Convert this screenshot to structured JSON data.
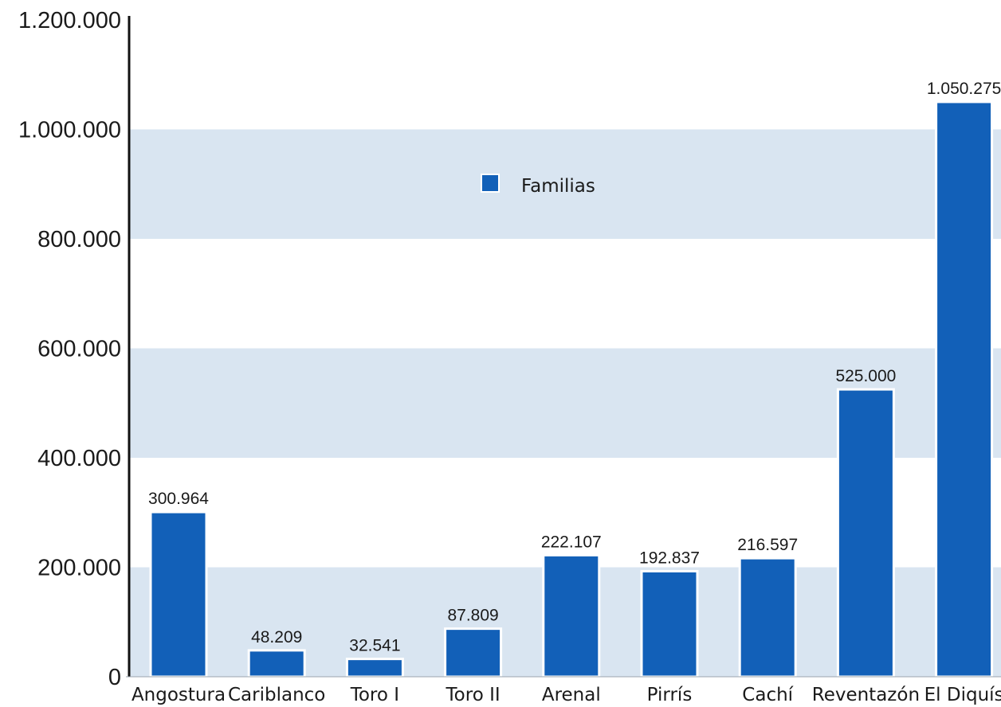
{
  "chart_data": {
    "type": "bar",
    "categories": [
      "Angostura",
      "Cariblanco",
      "Toro I",
      "Toro II",
      "Arenal",
      "Pirrís",
      "Cachí",
      "Reventazón",
      "El Diquís"
    ],
    "series": [
      {
        "name": "Familias",
        "values": [
          300964,
          48209,
          32541,
          87809,
          222107,
          192837,
          216597,
          525000,
          1050275
        ],
        "data_labels": [
          "300.964",
          "48.209",
          "32.541",
          "87.809",
          "222.107",
          "192.837",
          "216.597",
          "525.000",
          "1.050.275"
        ]
      }
    ],
    "ylim": [
      0,
      1200000
    ],
    "yticks": [
      0,
      200000,
      400000,
      600000,
      800000,
      1000000,
      1200000
    ],
    "ytick_labels": [
      "0",
      "200.000",
      "400.000",
      "600.000",
      "800.000",
      "1.000.000",
      "1.200.000"
    ],
    "grid": "alternating horizontal bands",
    "legend_position": "top-center",
    "colors": {
      "bar": "#1260b8",
      "band": "#d9e5f1",
      "axis": "#111111"
    }
  }
}
